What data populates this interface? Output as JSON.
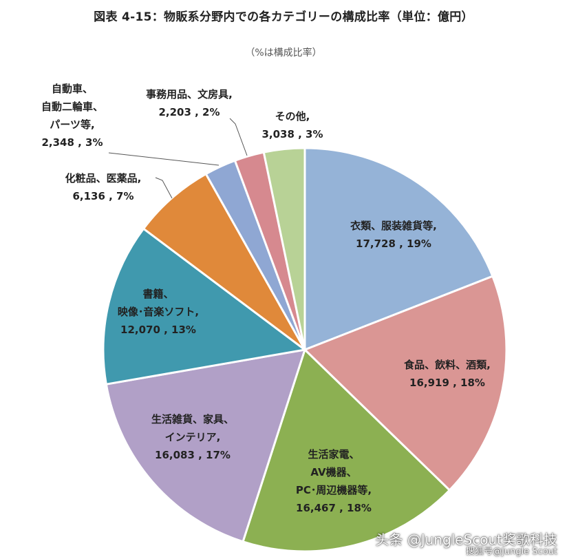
{
  "title": "図表 4-15：物販系分野内での各カテゴリーの構成比率（単位：億円）",
  "subtitle": "（%は構成比率）",
  "watermarks": {
    "main": "头条 @JungleScout奖歌科技",
    "sub": "搜狐号@Jungle Scout"
  },
  "chart_data": {
    "type": "pie",
    "unit": "億円",
    "slices": [
      {
        "lines": [
          "衣類、服装雑貨等,",
          "17,728 , 19%"
        ],
        "value": 17728,
        "percent": 19,
        "color": "#95B3D7"
      },
      {
        "lines": [
          "食品、飲料、酒類,",
          "16,919 , 18%"
        ],
        "value": 16919,
        "percent": 18,
        "color": "#DA9694"
      },
      {
        "lines": [
          "生活家電、",
          "AV機器、",
          "PC･周辺機器等,",
          "16,467 , 18%"
        ],
        "value": 16467,
        "percent": 18,
        "color": "#8CB052"
      },
      {
        "lines": [
          "生活雑貨、家具、",
          "インテリア,",
          "16,083 , 17%"
        ],
        "value": 16083,
        "percent": 17,
        "color": "#B1A0C7"
      },
      {
        "lines": [
          "書籍、",
          "映像･音楽ソフト,",
          "12,070 , 13%"
        ],
        "value": 12070,
        "percent": 13,
        "color": "#4099AE"
      },
      {
        "lines": [
          "化粧品、医薬品,",
          "6,136 , 7%"
        ],
        "value": 6136,
        "percent": 7,
        "color": "#E0893A"
      },
      {
        "lines": [
          "自動車、",
          "自動二輪車、",
          "パーツ等,",
          "2,348 , 3%"
        ],
        "value": 2348,
        "percent": 3,
        "color": "#8FA7D3"
      },
      {
        "lines": [
          "事務用品、文房具,",
          "2,203 , 2%"
        ],
        "value": 2203,
        "percent": 2,
        "color": "#D6898F"
      },
      {
        "lines": [
          "その他,",
          "3,038 , 3%"
        ],
        "value": 3038,
        "percent": 3,
        "color": "#B8D296"
      }
    ]
  }
}
